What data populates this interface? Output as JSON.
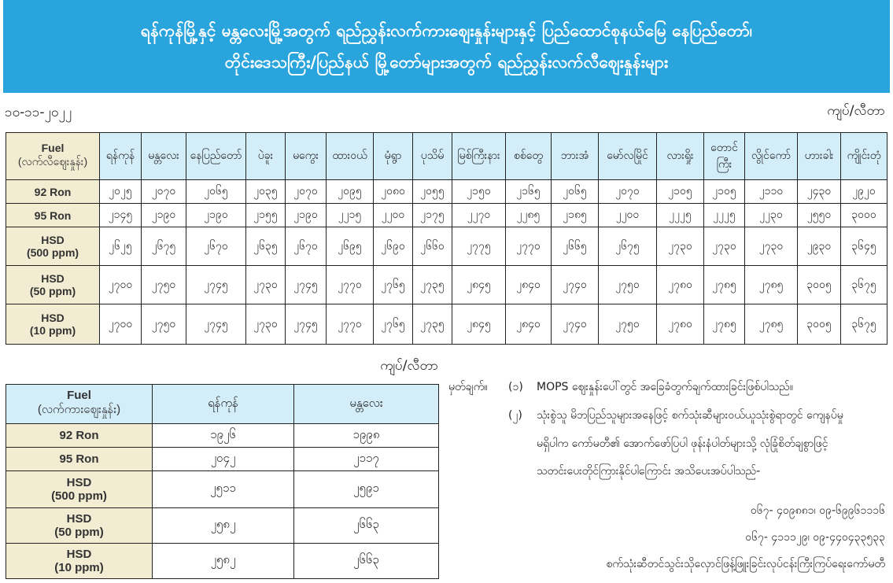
{
  "header": {
    "title_line1": "ရန်ကုန်မြို့နှင့် မန္တလေးမြို့အတွက် ရည်ညွှန်းလက်ကားဈေးနှုန်းများနှင့် ပြည်ထောင်စုနယ်မြေ နေပြည်တော်၊",
    "title_line2": "တိုင်းဒေသကြီး/ပြည်နယ် မြို့တော်များအတွက် ရည်ညွှန်းလက်လီဈေးနှုန်းများ",
    "color": "#2aa4dc"
  },
  "date": "၁၀-၁၁-၂၀၂၂",
  "unit": "ကျပ်/လီတာ",
  "retail": {
    "fuel_header": [
      "Fuel",
      "(လက်လီဈေးနှုန်း)"
    ],
    "cities": [
      "ရန်ကုန်",
      "မန္တလေး",
      "နေပြည်တော်",
      "ပဲခူး",
      "မကွေး",
      "ထားဝယ်",
      "မုံရွာ",
      "ပုသိမ်",
      "မြစ်ကြီးနား",
      "စစ်တွေ",
      "ဘားအံ",
      "မော်လမြိုင်",
      "လားရှိုး",
      "တောင်ကြီး",
      "လွိုင်ကော်",
      "ဟားခါး",
      "ကျိုင်းတုံ"
    ],
    "rows": [
      {
        "fuel": [
          "92 Ron"
        ],
        "values": [
          "၂၀၂၅",
          "၂၀၇၀",
          "၂၀၆၅",
          "၂၀၃၅",
          "၂၀၇၀",
          "၂၀၉၅",
          "၂၀၈၀",
          "၂၀၅၅",
          "၂၁၅၀",
          "၂၁၆၅",
          "၂၀၆၅",
          "၂၀၇၀",
          "၂၁၀၅",
          "၂၁၀၅",
          "၂၁၁၀",
          "၂၄၃၀",
          "၂၉၂၀"
        ]
      },
      {
        "fuel": [
          "95 Ron"
        ],
        "values": [
          "၂၁၄၅",
          "၂၁၉၀",
          "၂၁၉၀",
          "၂၁၅၅",
          "၂၁၉၀",
          "၂၂၁၅",
          "၂၂၀၀",
          "၂၁၇၅",
          "၂၂၇၀",
          "၂၂၈၅",
          "၂၁၈၅",
          "၂၂၀၀",
          "၂၂၂၅",
          "၂၂၂၅",
          "၂၂၃၀",
          "၂၅၅၀",
          "၃၀၀၀"
        ]
      },
      {
        "fuel": [
          "HSD",
          "(500 ppm)"
        ],
        "values": [
          "၂၆၂၅",
          "၂၆၇၅",
          "၂၆၇၀",
          "၂၆၃၅",
          "၂၆၇၀",
          "၂၆၉၅",
          "၂၆၉၀",
          "၂၆၆၀",
          "၂၇၇၅",
          "၂၇၇၀",
          "၂၆၆၅",
          "၂၆၇၅",
          "၂၇၃၀",
          "၂၇၃၀",
          "၂၇၃၀",
          "၂၉၃၀",
          "၃၆၄၅"
        ]
      },
      {
        "fuel": [
          "HSD",
          "(50 ppm)"
        ],
        "values": [
          "၂၇၀၀",
          "၂၇၅၀",
          "၂၇၄၅",
          "၂၇၃၀",
          "၂၇၄၅",
          "၂၇၇၀",
          "၂၇၆၅",
          "၂၇၃၅",
          "၂၈၄၅",
          "၂၈၄၀",
          "၂၇၄၀",
          "၂၇၅၀",
          "၂၇၈၀",
          "၂၇၈၅",
          "၂၇၈၅",
          "၃၀၀၅",
          "၃၆၇၅"
        ]
      },
      {
        "fuel": [
          "HSD",
          "(10 ppm)"
        ],
        "values": [
          "၂၇၀၀",
          "၂၇၅၀",
          "၂၇၄၅",
          "၂၇၃၀",
          "၂၇၄၅",
          "၂၇၇၀",
          "၂၇၆၅",
          "၂၇၃၅",
          "၂၈၄၅",
          "၂၈၄၀",
          "၂၇၄၀",
          "၂၇၅၀",
          "၂၇၈၀",
          "၂၇၈၅",
          "၂၇၈၅",
          "၃၀၀၅",
          "၃၆၇၅"
        ]
      }
    ]
  },
  "wholesale": {
    "fuel_header": [
      "Fuel",
      "(လက်ကားဈေးနှုန်း)"
    ],
    "cities": [
      "ရန်ကုန်",
      "မန္တလေး"
    ],
    "rows": [
      {
        "fuel": [
          "92 Ron"
        ],
        "values": [
          "၁၉၂၆",
          "၁၉၉၈"
        ]
      },
      {
        "fuel": [
          "95 Ron"
        ],
        "values": [
          "၂၀၄၂",
          "၂၁၁၇"
        ]
      },
      {
        "fuel": [
          "HSD",
          "(500 ppm)"
        ],
        "values": [
          "၂၅၁၁",
          "၂၅၉၁"
        ]
      },
      {
        "fuel": [
          "HSD",
          "(50 ppm)"
        ],
        "values": [
          "၂၅၈၂",
          "၂၆၆၃"
        ]
      },
      {
        "fuel": [
          "HSD",
          "(10 ppm)"
        ],
        "values": [
          "၂၅၈၂",
          "၂၆၆၃"
        ]
      }
    ]
  },
  "notes": {
    "label": "မှတ်ချက်။",
    "n1_num": "(၁)",
    "n1": "MOPS ဈေးနှုန်းပေါ်တွင် အခြေခံတွက်ချက်ထားခြင်းဖြစ်ပါသည်။",
    "n2_num": "(၂)",
    "n2_l1": "သုံးစွဲသူ မိဘပြည်သူများအနေဖြင့် စက်သုံးဆီများဝယ်ယူသုံးစွဲရာတွင် ကျေနပ်မှု",
    "n2_l2": "မရှိပါက  ကော်မတီ၏ အောက်ဖော်ပြပါ ဖုန်းနံပါတ်များသို့ လုံခြုံစိတ်ချစွာဖြင့်",
    "n2_l3": "သတင်းပေးတိုင်ကြားနိုင်ပါကြောင်း အသိပေးအပ်ပါသည်-",
    "phone1": "၀၆၇- ၄၀၉၈၈၁၊ ၀၉-၆၉၉၆၁၁၁၆",
    "phone2": "၀၆၇-  ၄၁၁၁၂၉၊ ၀၉-၄၄၀၄၃၃၅၃၃",
    "committee": "စက်သုံးဆီတင်သွင်းသိုလှောင်ဖြန့်ဖြူးခြင်းလုပ်ငန်းကြီးကြပ်ရေးကော်မတီ"
  }
}
